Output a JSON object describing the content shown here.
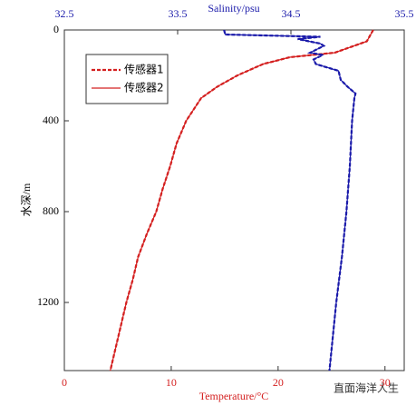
{
  "chart_data": {
    "type": "profile",
    "xlabel": "Temperature/°C",
    "x2label": "Salinity/psu",
    "ylabel": "水深/m",
    "xlim": [
      0,
      31.8
    ],
    "xticks": [
      0,
      10,
      20,
      30
    ],
    "x2lim": [
      32.5,
      35.5
    ],
    "x2ticks": [
      32.5,
      33.5,
      34.5,
      35.5
    ],
    "ylim": [
      0,
      1500
    ],
    "yticks": [
      0,
      400,
      800,
      1200
    ],
    "y_inverted": true,
    "xcolor": "#d42020",
    "x2color": "#1a1aaa",
    "series": [
      {
        "name": "传感器1",
        "color": "#d42020",
        "dashed": true,
        "depths": [
          0,
          50,
          100,
          120,
          150,
          200,
          250,
          300,
          400,
          500,
          600,
          700,
          800,
          900,
          1000,
          1100,
          1200,
          1300,
          1400,
          1500
        ],
        "values": [
          28.9,
          28.3,
          25.3,
          21.1,
          18.6,
          16.2,
          14.3,
          12.8,
          11.4,
          10.5,
          9.9,
          9.2,
          8.6,
          7.7,
          6.9,
          6.4,
          5.8,
          5.3,
          4.8,
          4.3
        ]
      },
      {
        "name": "传感器2",
        "color": "#d42020",
        "dashed": false,
        "depths": [
          0,
          50,
          100,
          120,
          150,
          200,
          250,
          300,
          400,
          500,
          600,
          700,
          800,
          900,
          1000,
          1100,
          1200,
          1300,
          1400,
          1500
        ],
        "values": [
          28.9,
          28.3,
          25.3,
          21.1,
          18.6,
          16.2,
          14.3,
          12.8,
          11.4,
          10.5,
          9.9,
          9.2,
          8.6,
          7.7,
          6.9,
          6.4,
          5.8,
          5.3,
          4.8,
          4.3
        ]
      },
      {
        "color": "#1a1aaa",
        "dashed": true,
        "axis": "x2",
        "depths": [
          0,
          20,
          30,
          40,
          60,
          70,
          100,
          110,
          130,
          150,
          180,
          220,
          250,
          280,
          300,
          400,
          600,
          800,
          1000,
          1200,
          1400,
          1500
        ],
        "values": [
          33.91,
          33.92,
          34.76,
          34.56,
          34.76,
          34.79,
          34.67,
          34.78,
          34.7,
          34.72,
          34.92,
          34.94,
          35.0,
          35.07,
          35.06,
          35.04,
          35.02,
          34.99,
          34.95,
          34.9,
          34.86,
          34.84
        ]
      },
      {
        "color": "#1a1aaa",
        "dashed": false,
        "axis": "x2",
        "depths": [
          0,
          20,
          30,
          40,
          60,
          70,
          100,
          110,
          130,
          150,
          180,
          220,
          250,
          280,
          300,
          400,
          600,
          800,
          1000,
          1200,
          1400,
          1500
        ],
        "values": [
          33.91,
          33.92,
          34.76,
          34.56,
          34.76,
          34.79,
          34.67,
          34.78,
          34.7,
          34.72,
          34.92,
          34.94,
          35.0,
          35.07,
          35.06,
          35.04,
          35.02,
          34.99,
          34.95,
          34.9,
          34.86,
          34.84
        ]
      }
    ],
    "legend": "upper-left",
    "watermark": "直面海洋人生"
  }
}
